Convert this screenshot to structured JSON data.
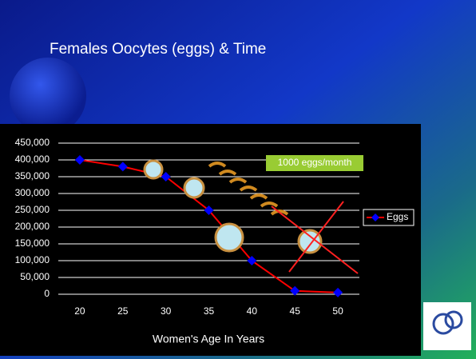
{
  "chart_data": {
    "type": "line",
    "title": "Females Oocytes (eggs) & Time",
    "x_label": "Women's Age In Years",
    "annotation": "1000 eggs/month",
    "categories": [
      "20",
      "25",
      "30",
      "35",
      "40",
      "45",
      "50"
    ],
    "series": [
      {
        "name": "Eggs",
        "color": "#0000ff",
        "line_color": "#ff0000",
        "values": [
          400000,
          380000,
          350000,
          250000,
          100000,
          10000,
          5000
        ]
      }
    ],
    "ylim": [
      0,
      450000
    ],
    "yticks": [
      0,
      {
        "value": 50000,
        "label": "50,000"
      },
      {
        "value": 100000,
        "label": "100,000"
      },
      {
        "value": 150000,
        "label": "150,000"
      },
      {
        "value": 200000,
        "label": "200,000"
      },
      {
        "value": 250000,
        "label": "250,000"
      },
      {
        "value": 300000,
        "label": "300,000"
      },
      {
        "value": 350000,
        "label": "350,000"
      },
      {
        "value": 400000,
        "label": "400,000"
      },
      {
        "value": 450000,
        "label": "450,000"
      }
    ],
    "grid": true,
    "legend": "right"
  }
}
